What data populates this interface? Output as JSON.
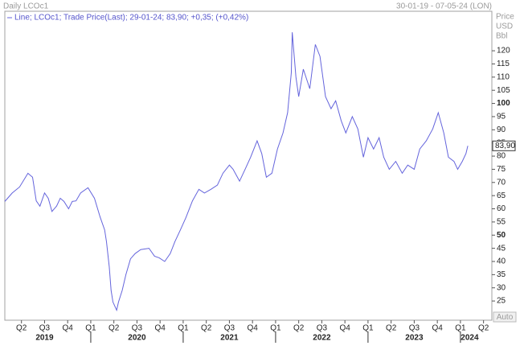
{
  "chart_data": {
    "type": "line",
    "title": "Daily LCOc1",
    "date_range": "30-01-19 - 07-05-24 (LON)",
    "unit_lines": [
      "Price",
      "USD",
      "Bbl"
    ],
    "legend": "Line; LCOc1; Trade Price(Last); 29-01-24; 83,90; +0,35; (+0,42%)",
    "button": "Auto",
    "last_price": {
      "value": 83.9,
      "label": "83,90"
    },
    "series": [
      {
        "name": "LCOc1",
        "color": "#6464dc",
        "x": [
          2019.07,
          2019.15,
          2019.23,
          2019.32,
          2019.37,
          2019.41,
          2019.45,
          2019.5,
          2019.54,
          2019.58,
          2019.63,
          2019.67,
          2019.71,
          2019.76,
          2019.8,
          2019.84,
          2019.89,
          2019.97,
          2020.04,
          2020.1,
          2020.15,
          2020.17,
          2020.2,
          2020.22,
          2020.24,
          2020.28,
          2020.3,
          2020.34,
          2020.38,
          2020.43,
          2020.48,
          2020.54,
          2020.63,
          2020.69,
          2020.74,
          2020.8,
          2020.86,
          2020.91,
          2020.97,
          2021.03,
          2021.1,
          2021.17,
          2021.23,
          2021.3,
          2021.37,
          2021.43,
          2021.5,
          2021.54,
          2021.61,
          2021.67,
          2021.73,
          2021.8,
          2021.85,
          2021.9,
          2021.96,
          2022.02,
          2022.08,
          2022.13,
          2022.17,
          2022.18,
          2022.22,
          2022.25,
          2022.3,
          2022.37,
          2022.43,
          2022.48,
          2022.54,
          2022.6,
          2022.65,
          2022.71,
          2022.76,
          2022.83,
          2022.89,
          2022.95,
          2023.0,
          2023.06,
          2023.12,
          2023.17,
          2023.23,
          2023.3,
          2023.37,
          2023.43,
          2023.5,
          2023.56,
          2023.63,
          2023.7,
          2023.76,
          2023.82,
          2023.87,
          2023.93,
          2023.97,
          2024.02,
          2024.06,
          2024.08
        ],
        "values": [
          62.8,
          66,
          68.3,
          73.5,
          72,
          63,
          61,
          66,
          64,
          59,
          61,
          64,
          62.8,
          60,
          62.8,
          63,
          66,
          68,
          64,
          57,
          52,
          47.5,
          38,
          29,
          24.6,
          21.5,
          24.6,
          29,
          35,
          41,
          43,
          44.5,
          45,
          42,
          41.4,
          40,
          43,
          47.5,
          52,
          56.7,
          63,
          67.4,
          66,
          67.4,
          69,
          73.5,
          76.6,
          75,
          70.5,
          75,
          79.6,
          85.8,
          81,
          72,
          73.5,
          82.7,
          88.8,
          96.5,
          111.7,
          127,
          110,
          102.6,
          113,
          105.6,
          122.4,
          117.9,
          102.6,
          98,
          101,
          93.4,
          88.8,
          95,
          90.3,
          79.6,
          87,
          82.7,
          87,
          79.6,
          75,
          78,
          73.5,
          76.6,
          75,
          82.7,
          85.8,
          90.3,
          96.5,
          88.8,
          79.6,
          78,
          75,
          78,
          81,
          83.9
        ]
      }
    ],
    "xlim": [
      2019.07,
      2024.34
    ],
    "ylim": [
      17.7,
      135
    ],
    "yticks": [
      25,
      30,
      35,
      40,
      45,
      50,
      55,
      60,
      65,
      70,
      75,
      80,
      85,
      90,
      95,
      100,
      105,
      110,
      115,
      120
    ],
    "xticks": [
      {
        "value": 2019.25,
        "label": "Q2"
      },
      {
        "value": 2019.5,
        "label": "Q3"
      },
      {
        "value": 2019.75,
        "label": "Q4"
      },
      {
        "value": 2020.0,
        "label": "Q1"
      },
      {
        "value": 2020.25,
        "label": "Q2"
      },
      {
        "value": 2020.5,
        "label": "Q3"
      },
      {
        "value": 2020.75,
        "label": "Q4"
      },
      {
        "value": 2021.0,
        "label": "Q1"
      },
      {
        "value": 2021.25,
        "label": "Q2"
      },
      {
        "value": 2021.5,
        "label": "Q3"
      },
      {
        "value": 2021.75,
        "label": "Q4"
      },
      {
        "value": 2022.0,
        "label": "Q1"
      },
      {
        "value": 2022.25,
        "label": "Q2"
      },
      {
        "value": 2022.5,
        "label": "Q3"
      },
      {
        "value": 2022.75,
        "label": "Q4"
      },
      {
        "value": 2023.0,
        "label": "Q1"
      },
      {
        "value": 2023.25,
        "label": "Q2"
      },
      {
        "value": 2023.5,
        "label": "Q3"
      },
      {
        "value": 2023.75,
        "label": "Q4"
      },
      {
        "value": 2024.0,
        "label": "Q1"
      },
      {
        "value": 2024.25,
        "label": "Q2"
      }
    ],
    "year_ticks": [
      {
        "value": 2019.5,
        "label": "2019"
      },
      {
        "value": 2020.5,
        "label": "2020"
      },
      {
        "value": 2021.5,
        "label": "2021"
      },
      {
        "value": 2022.5,
        "label": "2022"
      },
      {
        "value": 2023.5,
        "label": "2023"
      },
      {
        "value": 2024.1,
        "label": "2024"
      }
    ]
  }
}
